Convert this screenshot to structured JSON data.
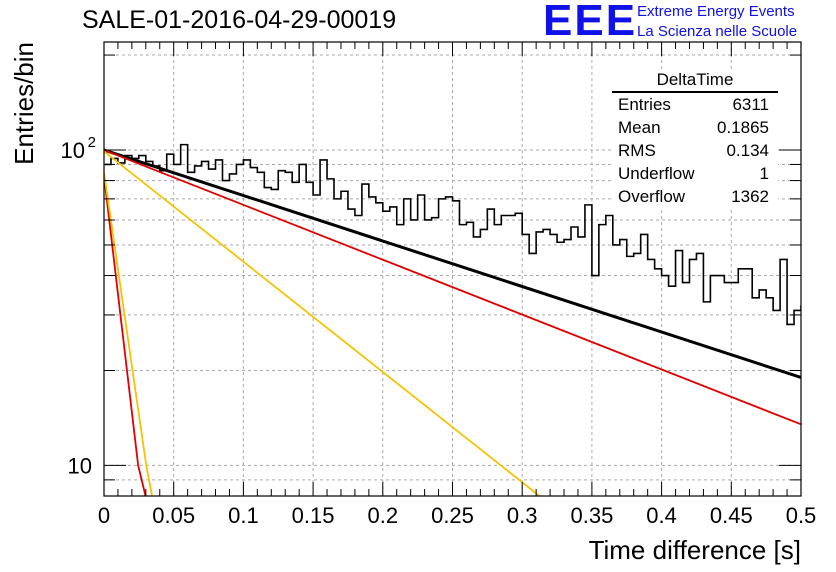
{
  "header": {
    "run_title": "SALE-01-2016-04-29-00019",
    "logo_text": "EEE",
    "logo_line1": "Extreme Energy Events",
    "logo_line2": "La Scienza nelle Scuole"
  },
  "stats_box": {
    "title": "DeltaTime",
    "rows": [
      {
        "label": "Entries",
        "value": "6311"
      },
      {
        "label": "Mean",
        "value": "0.1865"
      },
      {
        "label": "RMS",
        "value": "0.134"
      },
      {
        "label": "Underflow",
        "value": "1"
      },
      {
        "label": "Overflow",
        "value": "1362"
      }
    ]
  },
  "colors": {
    "histogram": "#000000",
    "fit_total": "#000000",
    "red_curves": "#e00000",
    "yellow_curves": "#f5c400",
    "logo": "#1010e8"
  },
  "chart_data": {
    "type": "line",
    "xlabel": "Time difference [s]",
    "ylabel": "Entries/bin",
    "xlim": [
      0,
      0.5
    ],
    "ylim": [
      8,
      220
    ],
    "yscale": "log",
    "grid": true,
    "x_ticks": [
      "0",
      "0.05",
      "0.1",
      "0.15",
      "0.2",
      "0.25",
      "0.3",
      "0.35",
      "0.4",
      "0.45",
      "0.5"
    ],
    "y_ticks": [
      {
        "value": 10,
        "base": "10",
        "exp": ""
      },
      {
        "value": 100,
        "base": "10",
        "exp": "2"
      }
    ],
    "histogram": {
      "bin_width": 0.005,
      "values": [
        90,
        94,
        91,
        96,
        94,
        96,
        92,
        89,
        86,
        97,
        90,
        104,
        85,
        89,
        92,
        87,
        93,
        80,
        84,
        90,
        93,
        88,
        85,
        76,
        75,
        86,
        85,
        79,
        90,
        79,
        72,
        93,
        81,
        70,
        74,
        65,
        62,
        78,
        71,
        68,
        64,
        66,
        58,
        70,
        60,
        72,
        60,
        61,
        70,
        71,
        69,
        58,
        59,
        53,
        56,
        65,
        58,
        62,
        62,
        63,
        54,
        47,
        55,
        56,
        54,
        51,
        52,
        57,
        53,
        67,
        40,
        58,
        62,
        50,
        52,
        46,
        47,
        54,
        45,
        42,
        40,
        37,
        48,
        38,
        45,
        47,
        33,
        40,
        40,
        38,
        38,
        42,
        42,
        34,
        36,
        34,
        31,
        45,
        28,
        31,
        32,
        35,
        35,
        41,
        36,
        24,
        24,
        35,
        32,
        31,
        26,
        27,
        31,
        34,
        28,
        25,
        30,
        24,
        28,
        30,
        19,
        30,
        32,
        27,
        26,
        23,
        24,
        20,
        22,
        24,
        22,
        22,
        18,
        24,
        22,
        18,
        17,
        22,
        21,
        19
      ]
    },
    "series": [
      {
        "style": "black",
        "points": [
          [
            0,
            100
          ],
          [
            0.5,
            19
          ]
        ]
      },
      {
        "style": "red",
        "points": [
          [
            0,
            100
          ],
          [
            0.5,
            13.5
          ]
        ]
      },
      {
        "style": "red",
        "points": [
          [
            0,
            83
          ],
          [
            0.0245,
            10
          ],
          [
            0.0298,
            8
          ]
        ]
      },
      {
        "style": "yellow",
        "points": [
          [
            0,
            85
          ],
          [
            0.0303,
            10
          ],
          [
            0.0345,
            8
          ]
        ]
      },
      {
        "style": "yellow",
        "points": [
          [
            0,
            99
          ],
          [
            0.3124,
            8
          ]
        ]
      }
    ]
  }
}
